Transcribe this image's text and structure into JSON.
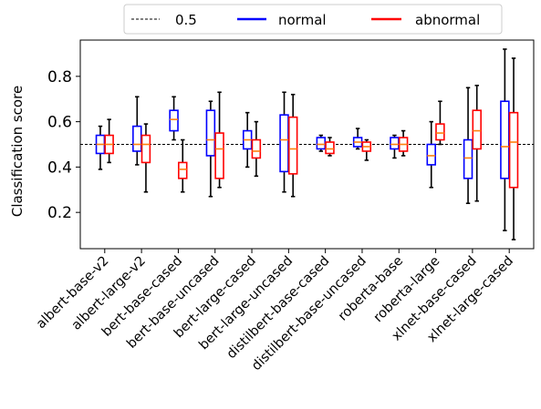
{
  "chart_data": {
    "type": "box",
    "ylabel": "Classification score",
    "xlabel": "",
    "ylim": [
      0.04,
      0.96
    ],
    "yticks": [
      0.2,
      0.4,
      0.6,
      0.8
    ],
    "ytick_labels": [
      "0.2",
      "0.4",
      "0.6",
      "0.8"
    ],
    "grid": false,
    "legend_position": "top-center",
    "reference_line": {
      "label": "0.5",
      "value": 0.5,
      "color": "#000000",
      "style": "dashed"
    },
    "median_color": "#ff7f0e",
    "categories": [
      "albert-base-v2",
      "albert-large-v2",
      "bert-base-cased",
      "bert-base-uncased",
      "bert-large-cased",
      "bert-large-uncased",
      "distilbert-base-cased",
      "distilbert-base-uncased",
      "roberta-base",
      "roberta-large",
      "xlnet-base-cased",
      "xlnet-large-cased"
    ],
    "series": [
      {
        "name": "normal",
        "color": "#0000ff",
        "boxes": [
          {
            "whislo": 0.39,
            "q1": 0.46,
            "med": 0.5,
            "q3": 0.54,
            "whishi": 0.58
          },
          {
            "whislo": 0.41,
            "q1": 0.47,
            "med": 0.5,
            "q3": 0.58,
            "whishi": 0.71
          },
          {
            "whislo": 0.52,
            "q1": 0.56,
            "med": 0.61,
            "q3": 0.65,
            "whishi": 0.71
          },
          {
            "whislo": 0.27,
            "q1": 0.45,
            "med": 0.52,
            "q3": 0.65,
            "whishi": 0.69
          },
          {
            "whislo": 0.4,
            "q1": 0.48,
            "med": 0.52,
            "q3": 0.56,
            "whishi": 0.64
          },
          {
            "whislo": 0.29,
            "q1": 0.38,
            "med": 0.52,
            "q3": 0.63,
            "whishi": 0.73
          },
          {
            "whislo": 0.47,
            "q1": 0.48,
            "med": 0.5,
            "q3": 0.53,
            "whishi": 0.54
          },
          {
            "whislo": 0.48,
            "q1": 0.49,
            "med": 0.51,
            "q3": 0.53,
            "whishi": 0.57
          },
          {
            "whislo": 0.44,
            "q1": 0.48,
            "med": 0.5,
            "q3": 0.53,
            "whishi": 0.54
          },
          {
            "whislo": 0.31,
            "q1": 0.41,
            "med": 0.45,
            "q3": 0.5,
            "whishi": 0.6
          },
          {
            "whislo": 0.24,
            "q1": 0.35,
            "med": 0.44,
            "q3": 0.52,
            "whishi": 0.75
          },
          {
            "whislo": 0.12,
            "q1": 0.35,
            "med": 0.49,
            "q3": 0.69,
            "whishi": 0.92
          }
        ]
      },
      {
        "name": "abnormal",
        "color": "#ff0000",
        "boxes": [
          {
            "whislo": 0.42,
            "q1": 0.46,
            "med": 0.5,
            "q3": 0.54,
            "whishi": 0.61
          },
          {
            "whislo": 0.29,
            "q1": 0.42,
            "med": 0.5,
            "q3": 0.54,
            "whishi": 0.59
          },
          {
            "whislo": 0.29,
            "q1": 0.35,
            "med": 0.39,
            "q3": 0.42,
            "whishi": 0.52
          },
          {
            "whislo": 0.31,
            "q1": 0.35,
            "med": 0.48,
            "q3": 0.55,
            "whishi": 0.73
          },
          {
            "whislo": 0.36,
            "q1": 0.44,
            "med": 0.47,
            "q3": 0.52,
            "whishi": 0.6
          },
          {
            "whislo": 0.27,
            "q1": 0.37,
            "med": 0.48,
            "q3": 0.62,
            "whishi": 0.72
          },
          {
            "whislo": 0.45,
            "q1": 0.46,
            "med": 0.48,
            "q3": 0.51,
            "whishi": 0.53
          },
          {
            "whislo": 0.43,
            "q1": 0.47,
            "med": 0.49,
            "q3": 0.51,
            "whishi": 0.52
          },
          {
            "whislo": 0.45,
            "q1": 0.47,
            "med": 0.5,
            "q3": 0.53,
            "whishi": 0.56
          },
          {
            "whislo": 0.5,
            "q1": 0.52,
            "med": 0.55,
            "q3": 0.59,
            "whishi": 0.69
          },
          {
            "whislo": 0.25,
            "q1": 0.48,
            "med": 0.56,
            "q3": 0.65,
            "whishi": 0.76
          },
          {
            "whislo": 0.08,
            "q1": 0.31,
            "med": 0.51,
            "q3": 0.64,
            "whishi": 0.88
          }
        ]
      }
    ]
  }
}
